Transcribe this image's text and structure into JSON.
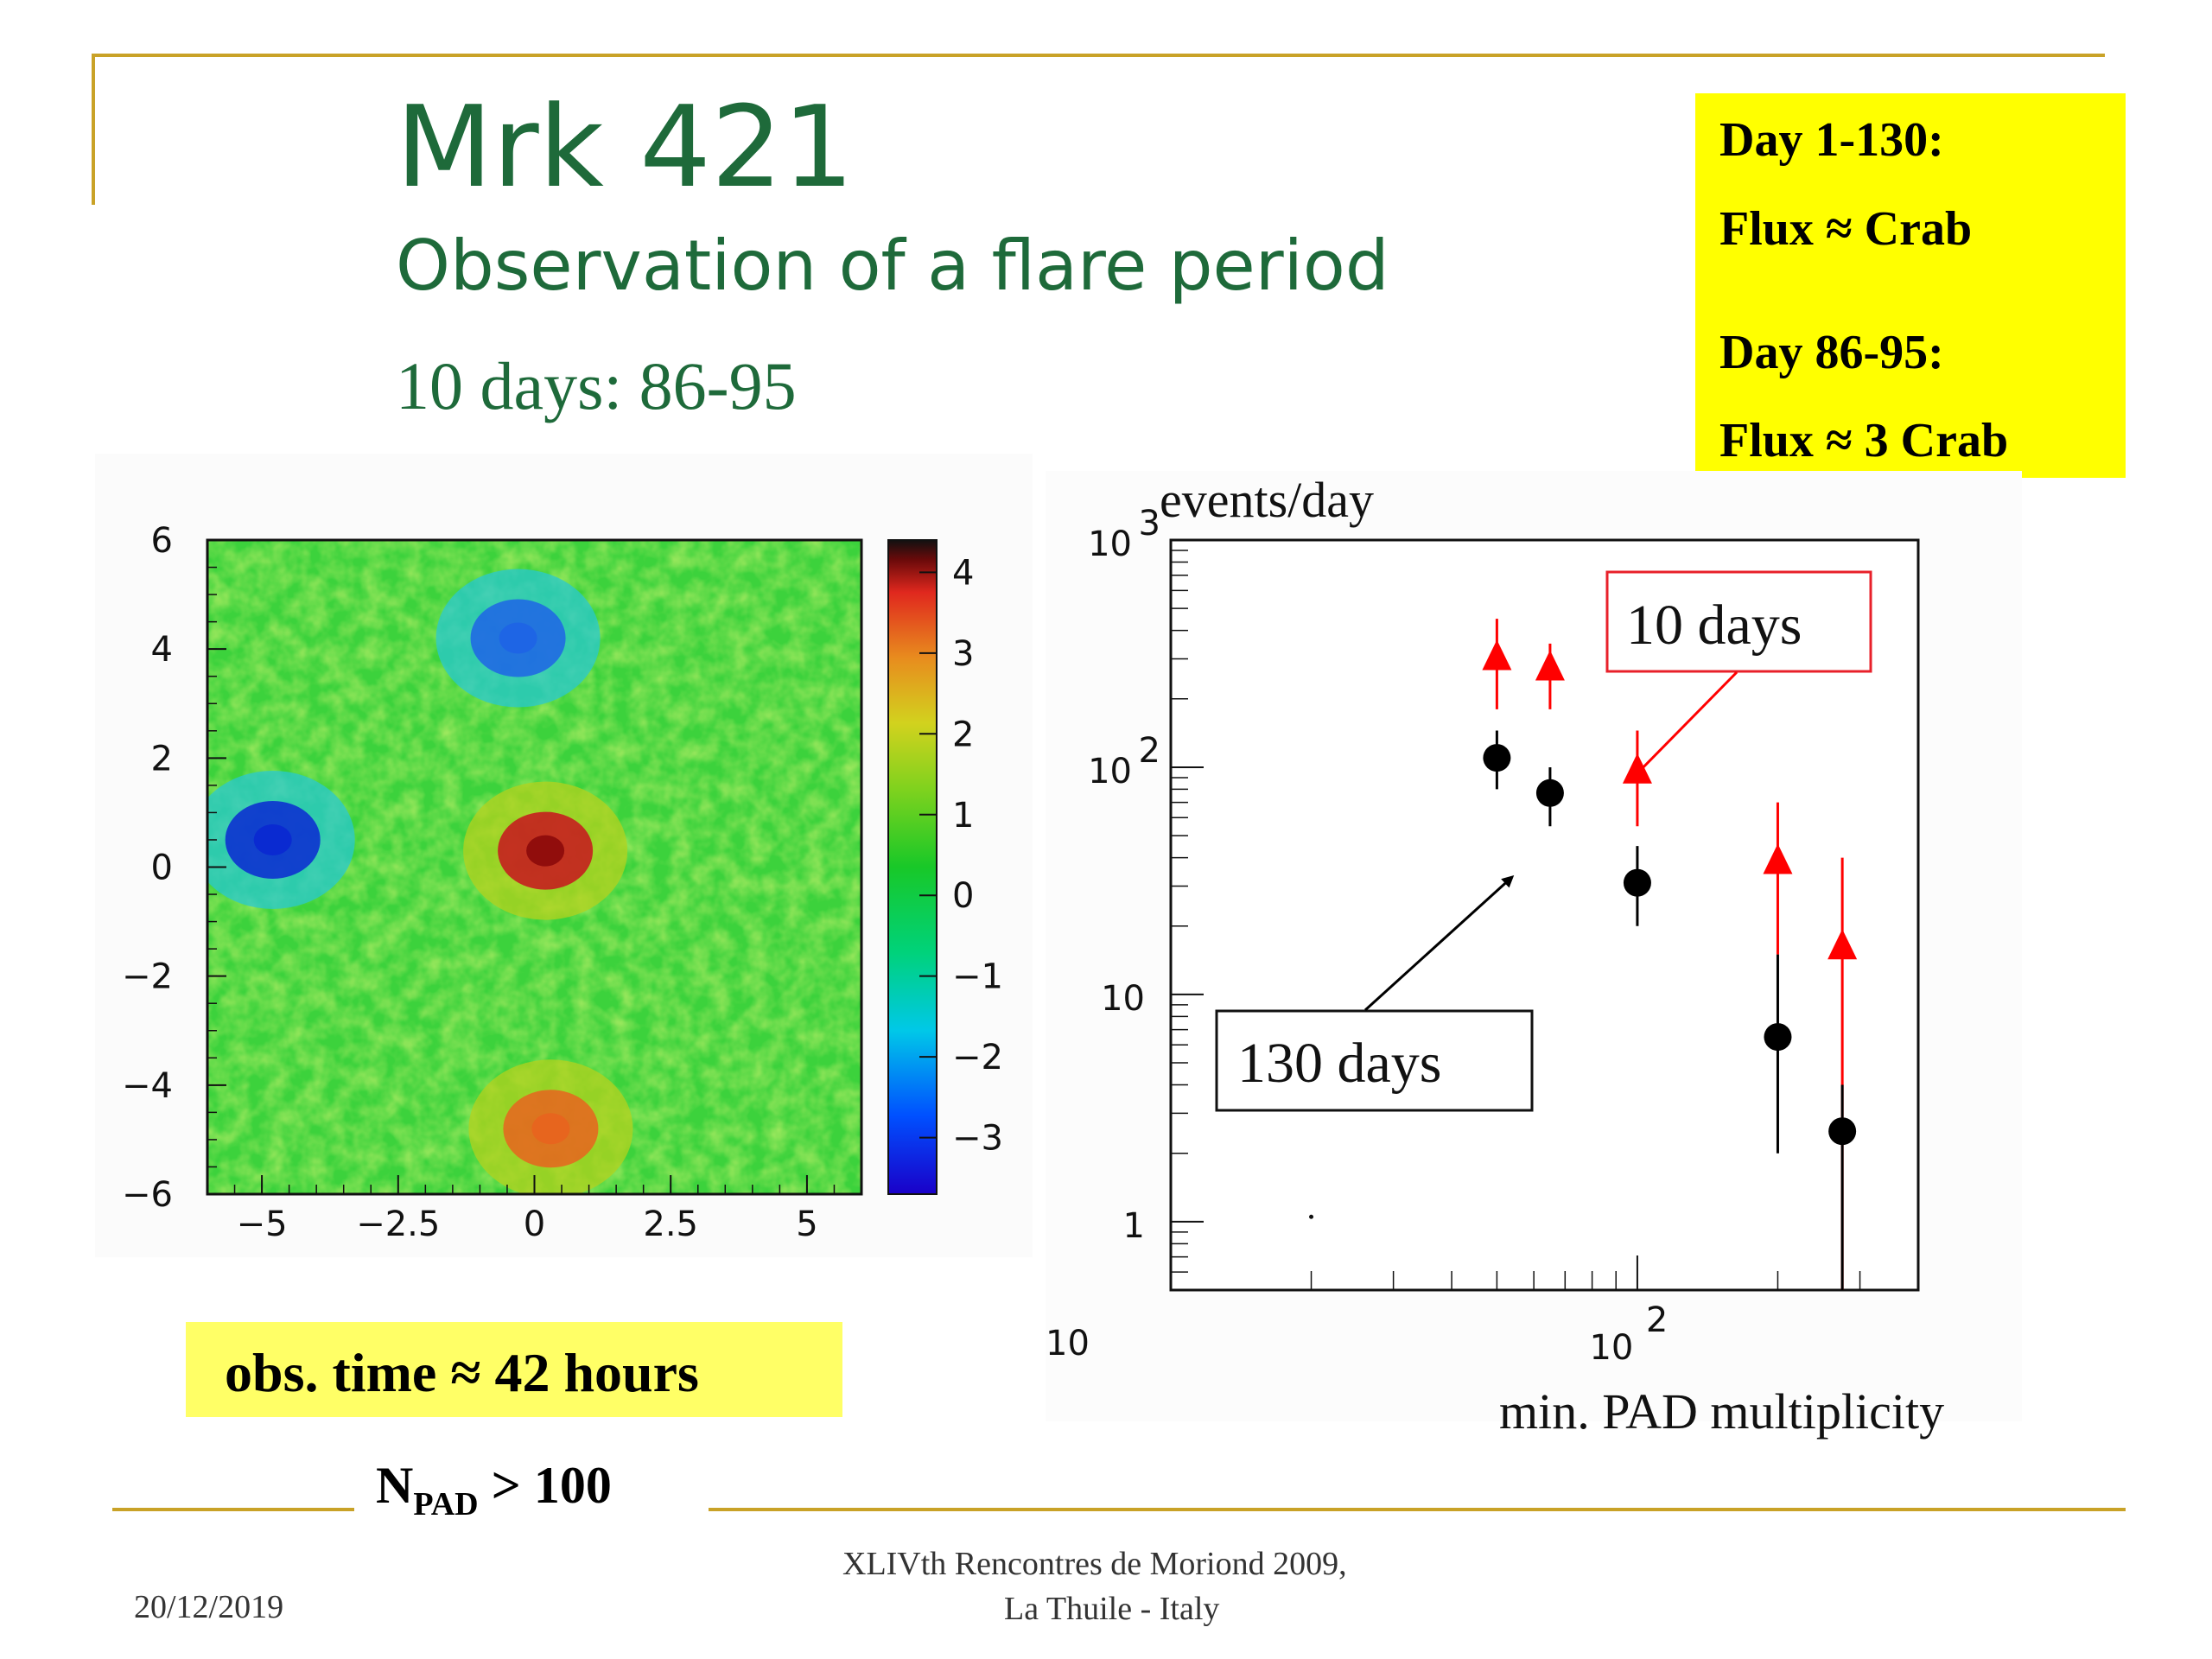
{
  "slide": {
    "title": "Mrk 421",
    "subtitle": "Observation of a flare period",
    "period": "10 days: 86-95",
    "note_box": {
      "line1": "Day 1-130:",
      "line2": "Flux ≈ Crab",
      "line3": "Day 86-95:",
      "line4": "Flux ≈ 3 Crab"
    },
    "obs_time": "obs. time ≈ 42  hours",
    "npad": {
      "base": "N",
      "sub": "PAD",
      "rest": " > 100"
    },
    "footer": {
      "date": "20/12/2019",
      "conf_line1": "XLIVth Rencontres de Moriond 2009,",
      "conf_line2": "La Thuile - Italy"
    },
    "colors": {
      "title_green": "#1e6a3a",
      "highlight": "#ffff00",
      "rule_gold": "#c9a227"
    }
  },
  "chart_data": [
    {
      "type": "heatmap",
      "x_ticks": [
        "−5",
        "−2.5",
        "0",
        "2.5",
        "5"
      ],
      "y_ticks": [
        "6",
        "4",
        "2",
        "0",
        "−2",
        "−4",
        "−6"
      ],
      "xlim": [
        -6,
        6
      ],
      "ylim": [
        -6,
        6
      ],
      "colorbar_ticks": [
        "4",
        "3",
        "2",
        "1",
        "0",
        "−1",
        "−2",
        "−3"
      ],
      "colorbar_range": [
        -3.7,
        4.4
      ],
      "hotspots": [
        {
          "x": 0.2,
          "y": 0.3,
          "value": 4.0
        },
        {
          "x": 0.3,
          "y": -4.8,
          "value": 3.0
        },
        {
          "x": -4.8,
          "y": 0.5,
          "value": -3.0
        },
        {
          "x": -0.3,
          "y": 4.2,
          "value": -2.6
        }
      ]
    },
    {
      "type": "scatter",
      "xlabel": "min. PAD multiplicity",
      "ylabel": "events/day",
      "x_scale": "log",
      "y_scale": "log",
      "xlim": [
        10,
        400
      ],
      "ylim": [
        0.5,
        1000
      ],
      "y_tick_labels": [
        "10 3",
        "10 2",
        "10",
        "1"
      ],
      "x_tick_labels": [
        "10",
        "10 2"
      ],
      "series": [
        {
          "name": "10 days",
          "color": "#ff0000",
          "marker": "triangle",
          "points": [
            {
              "x": 50,
              "y": 300,
              "lo": 180,
              "hi": 450
            },
            {
              "x": 65,
              "y": 270,
              "lo": 180,
              "hi": 350
            },
            {
              "x": 100,
              "y": 95,
              "lo": 55,
              "hi": 145
            },
            {
              "x": 200,
              "y": 38,
              "lo": 15,
              "hi": 70
            },
            {
              "x": 275,
              "y": 16,
              "lo": 0.5,
              "hi": 40
            }
          ]
        },
        {
          "name": "130 days",
          "color": "#000000",
          "marker": "circle",
          "points": [
            {
              "x": 50,
              "y": 110,
              "lo": 80,
              "hi": 145
            },
            {
              "x": 65,
              "y": 77,
              "lo": 55,
              "hi": 100
            },
            {
              "x": 100,
              "y": 31,
              "lo": 20,
              "hi": 45
            },
            {
              "x": 200,
              "y": 6.5,
              "lo": 2,
              "hi": 15
            },
            {
              "x": 275,
              "y": 2.5,
              "lo": 0.5,
              "hi": 4
            }
          ]
        }
      ]
    }
  ]
}
